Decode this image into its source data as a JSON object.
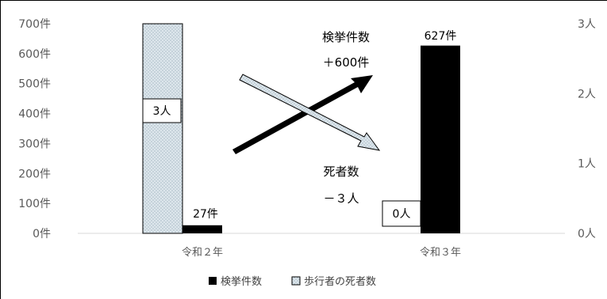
{
  "chart_data": {
    "type": "bar",
    "categories": [
      "令和２年",
      "令和３年"
    ],
    "series": [
      {
        "name": "検挙件数",
        "values": [
          27,
          627
        ],
        "color": "#000000",
        "axis": "left",
        "labels": [
          "27件",
          "627件"
        ]
      },
      {
        "name": "歩行者の死者数",
        "values": [
          3,
          0
        ],
        "color": "#dde6ec",
        "pattern": "dotted",
        "axis": "right",
        "labels": [
          "3人",
          "0人"
        ]
      }
    ],
    "left_axis": {
      "ylim": [
        0,
        700
      ],
      "ticks": [
        "0件",
        "100件",
        "200件",
        "300件",
        "400件",
        "500件",
        "600件",
        "700件"
      ]
    },
    "right_axis": {
      "ylim": [
        0,
        3
      ],
      "ticks": [
        "0人",
        "1人",
        "2人",
        "3人"
      ]
    },
    "annotations": {
      "increase_title": "検挙件数",
      "increase_value": "＋600件",
      "decrease_title": "死者数",
      "decrease_value": "－３人"
    },
    "legend": {
      "position": "bottom"
    },
    "grid": false
  }
}
